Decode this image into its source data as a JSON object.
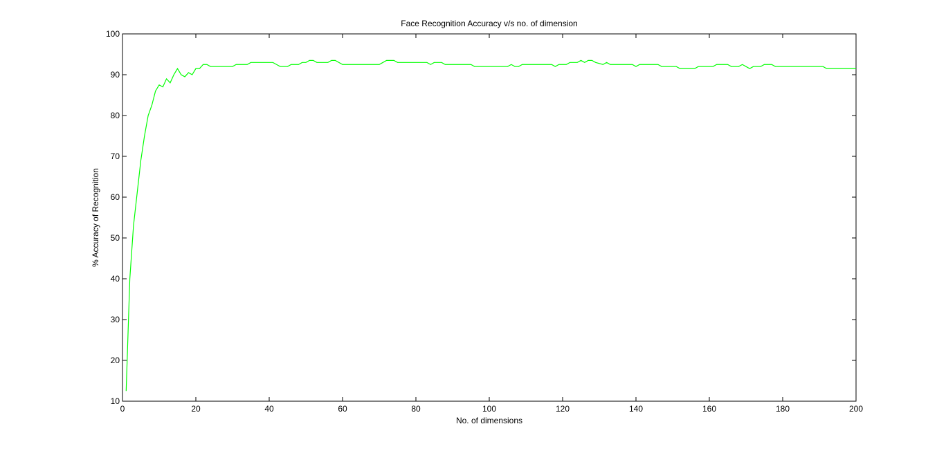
{
  "chart_data": {
    "type": "line",
    "title": "Face Recognition Accuracy v/s no. of dimension",
    "xlabel": "No. of dimensions",
    "ylabel": "% Accuracy of Recognition",
    "xlim": [
      0,
      200
    ],
    "ylim": [
      10,
      100
    ],
    "xticks": [
      0,
      20,
      40,
      60,
      80,
      100,
      120,
      140,
      160,
      180,
      200
    ],
    "yticks": [
      10,
      20,
      30,
      40,
      50,
      60,
      70,
      80,
      90,
      100
    ],
    "grid": false,
    "line_color": "#00ff00",
    "series": [
      {
        "points": [
          [
            1,
            12.5
          ],
          [
            2,
            40
          ],
          [
            3,
            53
          ],
          [
            4,
            61
          ],
          [
            5,
            69
          ],
          [
            6,
            75
          ],
          [
            7,
            80
          ],
          [
            8,
            82.5
          ],
          [
            9,
            86
          ],
          [
            10,
            87.5
          ],
          [
            11,
            87
          ],
          [
            12,
            89
          ],
          [
            13,
            88
          ],
          [
            14,
            90
          ],
          [
            15,
            91.5
          ],
          [
            16,
            90
          ],
          [
            17,
            89.5
          ],
          [
            18,
            90.5
          ],
          [
            19,
            90
          ],
          [
            20,
            91.5
          ],
          [
            21,
            91.5
          ],
          [
            22,
            92.5
          ],
          [
            23,
            92.5
          ],
          [
            24,
            92
          ],
          [
            25,
            92
          ],
          [
            28,
            92
          ],
          [
            30,
            92
          ],
          [
            31,
            92.5
          ],
          [
            34,
            92.5
          ],
          [
            35,
            93
          ],
          [
            40,
            93
          ],
          [
            41,
            93
          ],
          [
            42,
            92.5
          ],
          [
            43,
            92
          ],
          [
            45,
            92
          ],
          [
            46,
            92.5
          ],
          [
            48,
            92.5
          ],
          [
            49,
            93
          ],
          [
            50,
            93
          ],
          [
            51,
            93.5
          ],
          [
            52,
            93.5
          ],
          [
            53,
            93
          ],
          [
            55,
            93
          ],
          [
            56,
            93
          ],
          [
            57,
            93.5
          ],
          [
            58,
            93.5
          ],
          [
            60,
            92.5
          ],
          [
            70,
            92.5
          ],
          [
            71,
            93
          ],
          [
            72,
            93.5
          ],
          [
            74,
            93.5
          ],
          [
            75,
            93
          ],
          [
            83,
            93
          ],
          [
            84,
            92.5
          ],
          [
            85,
            93
          ],
          [
            87,
            93
          ],
          [
            88,
            92.5
          ],
          [
            95,
            92.5
          ],
          [
            96,
            92
          ],
          [
            105,
            92
          ],
          [
            106,
            92.5
          ],
          [
            107,
            92
          ],
          [
            108,
            92
          ],
          [
            109,
            92.5
          ],
          [
            117,
            92.5
          ],
          [
            118,
            92
          ],
          [
            119,
            92.5
          ],
          [
            121,
            92.5
          ],
          [
            122,
            93
          ],
          [
            124,
            93
          ],
          [
            125,
            93.5
          ],
          [
            126,
            93
          ],
          [
            127,
            93.5
          ],
          [
            128,
            93.5
          ],
          [
            129,
            93
          ],
          [
            131,
            92.5
          ],
          [
            132,
            93
          ],
          [
            133,
            92.5
          ],
          [
            139,
            92.5
          ],
          [
            140,
            92
          ],
          [
            141,
            92.5
          ],
          [
            146,
            92.5
          ],
          [
            147,
            92
          ],
          [
            151,
            92
          ],
          [
            152,
            91.5
          ],
          [
            156,
            91.5
          ],
          [
            157,
            92
          ],
          [
            161,
            92
          ],
          [
            162,
            92.5
          ],
          [
            165,
            92.5
          ],
          [
            166,
            92
          ],
          [
            168,
            92
          ],
          [
            169,
            92.5
          ],
          [
            170,
            92
          ],
          [
            171,
            91.5
          ],
          [
            172,
            92
          ],
          [
            174,
            92
          ],
          [
            175,
            92.5
          ],
          [
            177,
            92.5
          ],
          [
            178,
            92
          ],
          [
            191,
            92
          ],
          [
            192,
            91.5
          ],
          [
            200,
            91.5
          ]
        ]
      }
    ]
  }
}
